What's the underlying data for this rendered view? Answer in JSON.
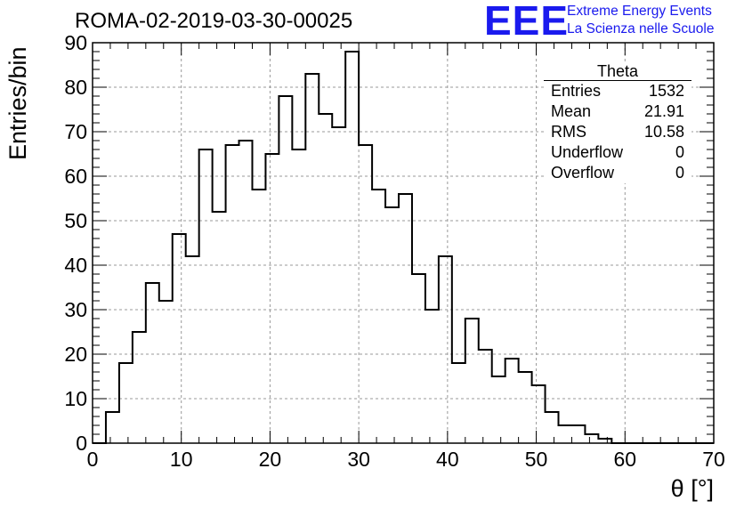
{
  "header": {
    "run_title": "ROMA-02-2019-03-30-00025",
    "logo": "EEE",
    "logo_line1": "Extreme Energy Events",
    "logo_line2": "La Scienza nelle Scuole",
    "logo_color": "#1a1aee"
  },
  "stats_box": {
    "title": "Theta",
    "rows": [
      {
        "label": "Entries",
        "value": "1532"
      },
      {
        "label": "Mean",
        "value": "21.91"
      },
      {
        "label": "RMS",
        "value": "10.58"
      },
      {
        "label": "Underflow",
        "value": "0"
      },
      {
        "label": "Overflow",
        "value": "0"
      }
    ]
  },
  "chart_data": {
    "type": "bar",
    "histogram": "step",
    "xlabel": "θ [°]",
    "ylabel": "Entries/bin",
    "xlim": [
      0,
      70
    ],
    "ylim": [
      0,
      90
    ],
    "x_ticks": [
      0,
      10,
      20,
      30,
      40,
      50,
      60,
      70
    ],
    "y_ticks": [
      0,
      10,
      20,
      30,
      40,
      50,
      60,
      70,
      80,
      90
    ],
    "grid": true,
    "bin_width": 1.5,
    "bin_start": 0,
    "values": [
      0,
      7,
      18,
      25,
      36,
      32,
      47,
      42,
      66,
      52,
      67,
      68,
      57,
      65,
      78,
      66,
      83,
      74,
      71,
      88,
      67,
      57,
      53,
      56,
      38,
      30,
      42,
      18,
      28,
      21,
      15,
      19,
      16,
      13,
      7,
      4,
      4,
      2,
      1,
      0,
      0,
      0,
      0,
      0,
      0,
      0,
      0
    ],
    "line_color": "#000000"
  }
}
